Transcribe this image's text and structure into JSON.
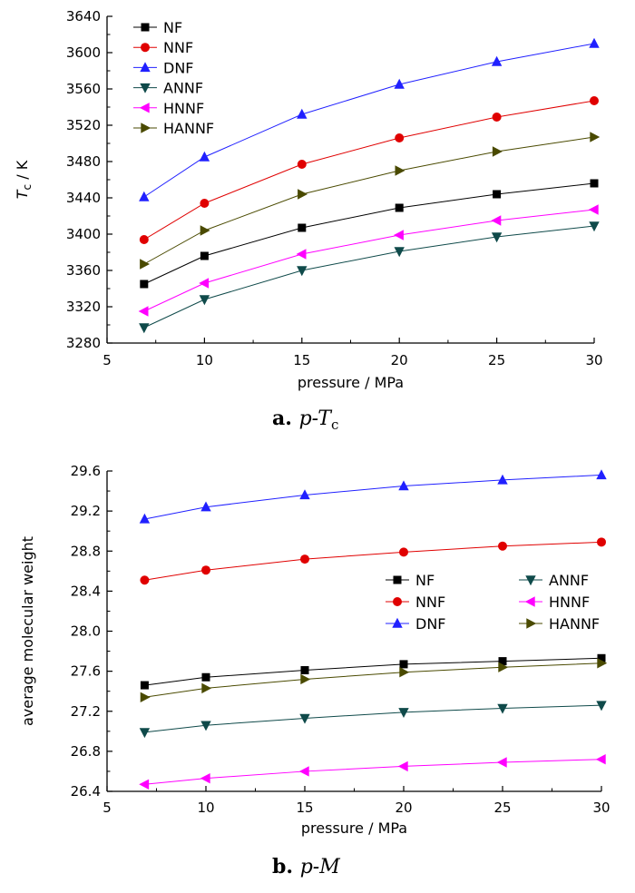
{
  "chart_data": [
    {
      "type": "line",
      "caption": {
        "letter": "a.",
        "text_pre": "p-",
        "text_main": "T",
        "text_sub": "c"
      },
      "xlabel": "pressure / MPa",
      "ylabel": {
        "main": "T",
        "sub": "c",
        "rest": " / K"
      },
      "xlim": [
        5,
        30
      ],
      "ylim": [
        3280,
        3640
      ],
      "xticks": [
        "5",
        "10",
        "15",
        "20",
        "25",
        "30"
      ],
      "yticks": [
        "3280",
        "3320",
        "3360",
        "3400",
        "3440",
        "3480",
        "3520",
        "3560",
        "3600",
        "3640"
      ],
      "x": [
        6.9,
        10,
        15,
        20,
        25,
        30
      ],
      "grid": false,
      "legend_position": "top-left",
      "series": [
        {
          "name": "NF",
          "color": "#000000",
          "marker": "square",
          "values": [
            3345,
            3376,
            3407,
            3429,
            3444,
            3456
          ]
        },
        {
          "name": "NNF",
          "color": "#e00000",
          "marker": "circle",
          "values": [
            3394,
            3434,
            3477,
            3506,
            3529,
            3547
          ]
        },
        {
          "name": "DNF",
          "color": "#2020ff",
          "marker": "triangle-up",
          "values": [
            3441,
            3485,
            3532,
            3565,
            3590,
            3610
          ]
        },
        {
          "name": "ANNF",
          "color": "#0f4a4a",
          "marker": "triangle-down",
          "values": [
            3297,
            3328,
            3360,
            3381,
            3397,
            3409
          ]
        },
        {
          "name": "HNNF",
          "color": "#ff00ff",
          "marker": "triangle-left",
          "values": [
            3315,
            3346,
            3378,
            3399,
            3415,
            3427
          ]
        },
        {
          "name": "HANNF",
          "color": "#4a4a00",
          "marker": "triangle-right",
          "values": [
            3367,
            3404,
            3444,
            3470,
            3491,
            3507
          ]
        }
      ]
    },
    {
      "type": "line",
      "caption": {
        "letter": "b.",
        "text_pre": "p-",
        "text_main": "M",
        "text_sub": ""
      },
      "xlabel": "pressure / MPa",
      "ylabel": {
        "main": "average molecular weight",
        "sub": "",
        "rest": ""
      },
      "xlim": [
        5,
        30
      ],
      "ylim": [
        26.4,
        29.6
      ],
      "xticks": [
        "5",
        "10",
        "15",
        "20",
        "25",
        "30"
      ],
      "yticks": [
        "26.4",
        "26.8",
        "27.2",
        "27.6",
        "28.0",
        "28.4",
        "28.8",
        "29.2",
        "29.6"
      ],
      "x": [
        6.9,
        10,
        15,
        20,
        25,
        30
      ],
      "grid": false,
      "legend_position": "center-right",
      "series": [
        {
          "name": "NF",
          "color": "#000000",
          "marker": "square",
          "values": [
            27.46,
            27.54,
            27.61,
            27.67,
            27.7,
            27.73
          ]
        },
        {
          "name": "NNF",
          "color": "#e00000",
          "marker": "circle",
          "values": [
            28.51,
            28.61,
            28.72,
            28.79,
            28.85,
            28.89
          ]
        },
        {
          "name": "DNF",
          "color": "#2020ff",
          "marker": "triangle-up",
          "values": [
            29.12,
            29.24,
            29.36,
            29.45,
            29.51,
            29.56
          ]
        },
        {
          "name": "ANNF",
          "color": "#0f4a4a",
          "marker": "triangle-down",
          "values": [
            26.99,
            27.06,
            27.13,
            27.19,
            27.23,
            27.26
          ]
        },
        {
          "name": "HNNF",
          "color": "#ff00ff",
          "marker": "triangle-left",
          "values": [
            26.47,
            26.53,
            26.6,
            26.65,
            26.69,
            26.72
          ]
        },
        {
          "name": "HANNF",
          "color": "#4a4a00",
          "marker": "triangle-right",
          "values": [
            27.34,
            27.43,
            27.52,
            27.59,
            27.64,
            27.68
          ]
        }
      ]
    }
  ]
}
